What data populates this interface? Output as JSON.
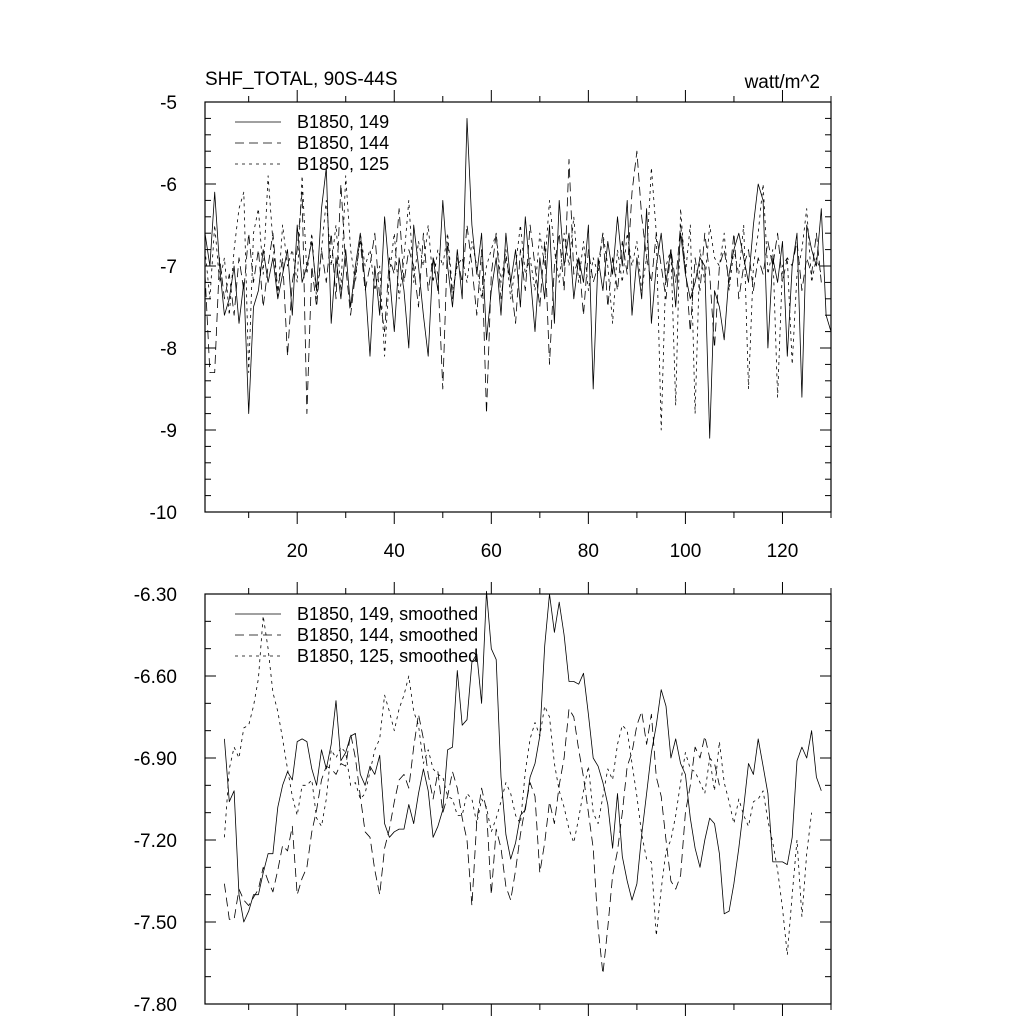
{
  "chart_data": [
    {
      "type": "line",
      "title": "SHF_TOTAL, 90S-44S",
      "units": "watt/m^2",
      "xlim": [
        1,
        130
      ],
      "ylim": [
        -10,
        -5
      ],
      "x_ticks": [
        20,
        40,
        60,
        80,
        100,
        120
      ],
      "y_ticks": [
        -10,
        -9,
        -8,
        -7,
        -6,
        -5
      ],
      "y_tick_labels": [
        "-10",
        "-9",
        "-8",
        "-7",
        "-6",
        "-5"
      ],
      "legend_position": "top-left",
      "grid": false,
      "series": [
        {
          "name": "B1850, 149",
          "style": "solid",
          "x_start": 1,
          "values": [
            -6.6,
            -7.0,
            -6.1,
            -7.0,
            -7.6,
            -7.4,
            -7.0,
            -7.7,
            -7.2,
            -8.8,
            -7.5,
            -7.3,
            -6.8,
            -7.2,
            -6.9,
            -7.4,
            -7.1,
            -6.8,
            -7.6,
            -6.5,
            -7.2,
            -7.0,
            -6.7,
            -7.3,
            -6.3,
            -5.8,
            -7.7,
            -6.9,
            -7.4,
            -6.8,
            -7.5,
            -7.0,
            -6.6,
            -7.2,
            -8.1,
            -7.0,
            -7.6,
            -6.4,
            -7.1,
            -7.8,
            -6.9,
            -7.3,
            -8.0,
            -6.5,
            -7.0,
            -7.6,
            -8.1,
            -6.9,
            -7.3,
            -6.2,
            -7.0,
            -7.5,
            -6.8,
            -7.4,
            -5.2,
            -6.5,
            -7.1,
            -6.6,
            -7.9,
            -7.3,
            -6.9,
            -7.6,
            -6.6,
            -7.2,
            -6.8,
            -7.5,
            -6.4,
            -7.1,
            -7.8,
            -6.9,
            -7.4,
            -6.5,
            -7.7,
            -6.2,
            -7.0,
            -6.6,
            -7.4,
            -6.9,
            -7.2,
            -6.5,
            -8.5,
            -6.9,
            -7.3,
            -6.7,
            -7.1,
            -6.4,
            -7.0,
            -6.2,
            -7.6,
            -6.9,
            -7.4,
            -6.3,
            -7.7,
            -7.0,
            -6.6,
            -7.2,
            -6.8,
            -7.5,
            -6.6,
            -7.1,
            -7.4,
            -7.2,
            -6.9,
            -7.0,
            -9.1,
            -7.3,
            -7.5,
            -7.9,
            -7.1,
            -6.8,
            -6.6,
            -6.9,
            -7.2,
            -6.5,
            -6.0,
            -6.2,
            -8.0,
            -6.9,
            -7.2,
            -6.7,
            -8.1,
            -7.0,
            -6.6,
            -8.6,
            -6.5,
            -6.8,
            -7.0,
            -6.3,
            -7.6,
            -7.8
          ]
        },
        {
          "name": "B1850, 144",
          "style": "dashed",
          "x_start": 1,
          "values": [
            -7.1,
            -8.3,
            -8.3,
            -6.9,
            -7.4,
            -7.1,
            -7.6,
            -6.9,
            -7.3,
            -6.6,
            -7.2,
            -6.8,
            -7.5,
            -7.0,
            -6.6,
            -7.3,
            -6.9,
            -8.1,
            -7.2,
            -6.8,
            -6.1,
            -8.8,
            -7.0,
            -7.5,
            -6.8,
            -7.2,
            -6.6,
            -7.4,
            -6.0,
            -7.0,
            -7.6,
            -7.1,
            -6.7,
            -7.3,
            -7.0,
            -6.6,
            -7.4,
            -7.8,
            -6.9,
            -7.1,
            -6.3,
            -7.2,
            -6.8,
            -7.0,
            -7.5,
            -6.6,
            -7.3,
            -6.9,
            -7.1,
            -8.5,
            -6.7,
            -7.4,
            -6.9,
            -7.2,
            -6.5,
            -7.0,
            -7.6,
            -6.8,
            -8.8,
            -7.1,
            -6.6,
            -7.4,
            -6.9,
            -7.2,
            -7.7,
            -6.8,
            -7.3,
            -6.5,
            -7.0,
            -7.5,
            -6.7,
            -8.2,
            -7.0,
            -6.6,
            -7.3,
            -5.7,
            -7.1,
            -6.9,
            -7.6,
            -6.8,
            -7.2,
            -7.0,
            -6.6,
            -7.5,
            -6.9,
            -7.3,
            -6.7,
            -7.1,
            -6.1,
            -5.6,
            -6.4,
            -6.9,
            -7.2,
            -6.6,
            -7.0,
            -7.4,
            -6.8,
            -7.2,
            -6.5,
            -7.0,
            -7.8,
            -6.9,
            -7.3,
            -6.6,
            -7.1,
            -8.0,
            -7.0,
            -6.8,
            -7.2,
            -6.6,
            -7.4,
            -7.0,
            -6.8,
            -7.3,
            -6.9,
            -7.1,
            -6.7,
            -7.0,
            -6.6,
            -7.2,
            -6.9,
            -7.0,
            -6.7,
            -7.3,
            -6.9,
            -7.1,
            -6.6,
            -7.2
          ]
        },
        {
          "name": "B1850, 125",
          "style": "dotted",
          "x_start": 1,
          "values": [
            -6.8,
            -7.4,
            -6.5,
            -7.2,
            -6.9,
            -7.6,
            -6.8,
            -6.3,
            -6.1,
            -8.3,
            -6.6,
            -6.3,
            -7.1,
            -5.9,
            -6.7,
            -7.4,
            -6.5,
            -7.0,
            -6.8,
            -7.2,
            -5.9,
            -7.1,
            -6.6,
            -7.4,
            -6.8,
            -6.2,
            -7.0,
            -6.5,
            -7.3,
            -5.9,
            -6.8,
            -7.2,
            -6.6,
            -7.0,
            -6.8,
            -7.3,
            -7.0,
            -8.1,
            -7.1,
            -6.6,
            -7.4,
            -6.9,
            -6.2,
            -7.2,
            -6.7,
            -7.0,
            -6.5,
            -7.2,
            -6.8,
            -7.0,
            -6.6,
            -7.3,
            -7.0,
            -6.9,
            -7.2,
            -6.7,
            -7.0,
            -7.4,
            -7.0,
            -6.8,
            -6.6,
            -7.2,
            -6.8,
            -7.4,
            -7.0,
            -6.5,
            -7.1,
            -6.9,
            -7.3,
            -6.6,
            -7.0,
            -6.2,
            -6.8,
            -7.2,
            -6.6,
            -7.0,
            -6.4,
            -7.2,
            -6.7,
            -7.3,
            -6.9,
            -7.1,
            -6.6,
            -7.0,
            -7.7,
            -6.8,
            -7.2,
            -6.6,
            -7.0,
            -6.7,
            -7.3,
            -6.9,
            -5.8,
            -6.6,
            -9.0,
            -7.0,
            -6.8,
            -8.7,
            -6.3,
            -7.1,
            -6.5,
            -8.8,
            -6.8,
            -7.2,
            -6.5,
            -6.9,
            -7.0,
            -6.6,
            -7.3,
            -6.8,
            -7.1,
            -6.5,
            -8.5,
            -7.0,
            -6.6,
            -6.0,
            -7.1,
            -6.8,
            -8.6,
            -7.0,
            -6.9,
            -8.2,
            -7.1,
            -6.8,
            -6.3,
            -7.2,
            -6.9,
            -7.1
          ]
        }
      ]
    },
    {
      "type": "line",
      "xlim": [
        1,
        130
      ],
      "ylim": [
        -7.8,
        -6.3
      ],
      "y_ticks": [
        -7.8,
        -7.5,
        -7.2,
        -6.9,
        -6.6,
        -6.3
      ],
      "y_tick_labels": [
        "-7.80",
        "-7.50",
        "-7.20",
        "-6.90",
        "-6.60",
        "-6.30"
      ],
      "legend_position": "top-left",
      "grid": false,
      "series": [
        {
          "name": "B1850, 149, smoothed",
          "style": "solid",
          "x_start": 5,
          "values": [
            -6.83,
            -7.06,
            -7.02,
            -7.4,
            -7.5,
            -7.46,
            -7.4,
            -7.4,
            -7.32,
            -7.25,
            -7.25,
            -7.08,
            -7.0,
            -6.95,
            -6.98,
            -6.84,
            -6.83,
            -6.84,
            -6.94,
            -7.0,
            -6.87,
            -6.94,
            -6.85,
            -6.69,
            -6.91,
            -6.88,
            -6.82,
            -6.81,
            -6.96,
            -7.0,
            -6.93,
            -6.96,
            -6.89,
            -7.14,
            -7.19,
            -7.17,
            -7.16,
            -7.16,
            -7.07,
            -7.14,
            -7.03,
            -6.94,
            -7.02,
            -7.19,
            -7.15,
            -7.09,
            -6.87,
            -6.86,
            -6.58,
            -6.78,
            -6.76,
            -6.55,
            -6.52,
            -6.7,
            -6.29,
            -6.5,
            -6.54,
            -6.97,
            -7.18,
            -7.27,
            -7.21,
            -7.11,
            -7.09,
            -6.97,
            -6.92,
            -6.82,
            -6.49,
            -6.3,
            -6.44,
            -6.33,
            -6.45,
            -6.62,
            -6.62,
            -6.63,
            -6.59,
            -6.74,
            -6.9,
            -6.93,
            -6.99,
            -7.07,
            -7.23,
            -7.03,
            -7.26,
            -7.35,
            -7.42,
            -7.36,
            -7.18,
            -7.03,
            -6.88,
            -6.78,
            -6.65,
            -6.71,
            -6.9,
            -6.83,
            -6.92,
            -6.96,
            -7.12,
            -7.23,
            -7.3,
            -7.2,
            -7.12,
            -7.14,
            -7.25,
            -7.47,
            -7.46,
            -7.36,
            -7.23,
            -7.08,
            -6.92,
            -6.96,
            -6.83,
            -6.93,
            -7.03,
            -7.28,
            -7.28,
            -7.28,
            -7.29,
            -7.19,
            -6.91,
            -6.86,
            -6.9,
            -6.8,
            -6.97,
            -7.02
          ]
        },
        {
          "name": "B1850, 144, smoothed",
          "style": "dashed",
          "x_start": 5,
          "values": [
            -7.36,
            -7.49,
            -7.49,
            -7.38,
            -7.42,
            -7.44,
            -7.41,
            -7.38,
            -7.3,
            -7.35,
            -7.39,
            -7.31,
            -7.22,
            -7.24,
            -7.15,
            -7.4,
            -7.34,
            -7.3,
            -7.17,
            -7.09,
            -6.98,
            -6.93,
            -6.94,
            -6.96,
            -6.92,
            -6.93,
            -6.81,
            -6.9,
            -7.04,
            -7.17,
            -7.19,
            -7.31,
            -7.4,
            -7.23,
            -7.16,
            -7.06,
            -6.98,
            -6.96,
            -7.01,
            -6.86,
            -6.74,
            -6.83,
            -6.96,
            -7.05,
            -6.95,
            -7.1,
            -7.04,
            -6.95,
            -7.01,
            -7.12,
            -7.2,
            -7.44,
            -7.13,
            -7.01,
            -7.09,
            -7.4,
            -7.16,
            -7.23,
            -7.37,
            -7.42,
            -7.31,
            -7.18,
            -7.08,
            -6.99,
            -7.04,
            -7.32,
            -7.21,
            -7.06,
            -7.14,
            -7.0,
            -6.9,
            -6.72,
            -6.75,
            -6.87,
            -6.97,
            -7.1,
            -7.23,
            -7.52,
            -7.69,
            -7.52,
            -7.33,
            -7.24,
            -7.1,
            -6.93,
            -6.88,
            -6.78,
            -6.73,
            -6.85,
            -6.74,
            -6.97,
            -7.04,
            -7.2,
            -7.35,
            -7.38,
            -7.33,
            -7.1,
            -7.0,
            -6.86,
            -6.9,
            -6.82,
            -6.9,
            -6.92,
            -7.0
          ]
        },
        {
          "name": "B1850, 125, smoothed",
          "style": "dotted",
          "x_start": 5,
          "values": [
            -7.19,
            -6.94,
            -6.86,
            -6.9,
            -6.79,
            -6.78,
            -6.71,
            -6.61,
            -6.38,
            -6.5,
            -6.66,
            -6.73,
            -6.83,
            -6.94,
            -7.04,
            -7.11,
            -7.0,
            -7.0,
            -6.98,
            -7.12,
            -7.15,
            -7.05,
            -6.87,
            -6.9,
            -6.86,
            -6.88,
            -7.0,
            -6.99,
            -7.05,
            -7.03,
            -6.95,
            -6.87,
            -6.83,
            -6.67,
            -6.73,
            -6.8,
            -6.72,
            -6.67,
            -6.6,
            -6.73,
            -6.78,
            -6.92,
            -6.87,
            -6.94,
            -6.96,
            -6.97,
            -7.04,
            -7.05,
            -7.11,
            -7.11,
            -7.03,
            -7.05,
            -7.14,
            -7.05,
            -7.08,
            -7.17,
            -7.12,
            -7.06,
            -6.99,
            -7.03,
            -7.11,
            -7.14,
            -6.95,
            -6.83,
            -6.77,
            -6.82,
            -6.71,
            -6.75,
            -6.92,
            -7.02,
            -7.08,
            -7.16,
            -7.21,
            -7.12,
            -7.02,
            -6.93,
            -7.1,
            -7.14,
            -7.04,
            -6.94,
            -6.98,
            -6.85,
            -6.78,
            -6.8,
            -6.92,
            -7.04,
            -7.18,
            -7.27,
            -7.28,
            -7.55,
            -7.38,
            -7.24,
            -7.2,
            -7.11,
            -6.99,
            -6.88,
            -6.94,
            -6.95,
            -6.99,
            -7.03,
            -6.9,
            -7.02,
            -6.84,
            -6.99,
            -7.06,
            -7.14,
            -7.05,
            -7.11,
            -7.15,
            -7.06,
            -7.05,
            -7.02,
            -7.13,
            -7.21,
            -7.31,
            -7.45,
            -7.62,
            -7.4,
            -7.2,
            -7.48,
            -7.25,
            -7.1
          ]
        }
      ]
    }
  ]
}
